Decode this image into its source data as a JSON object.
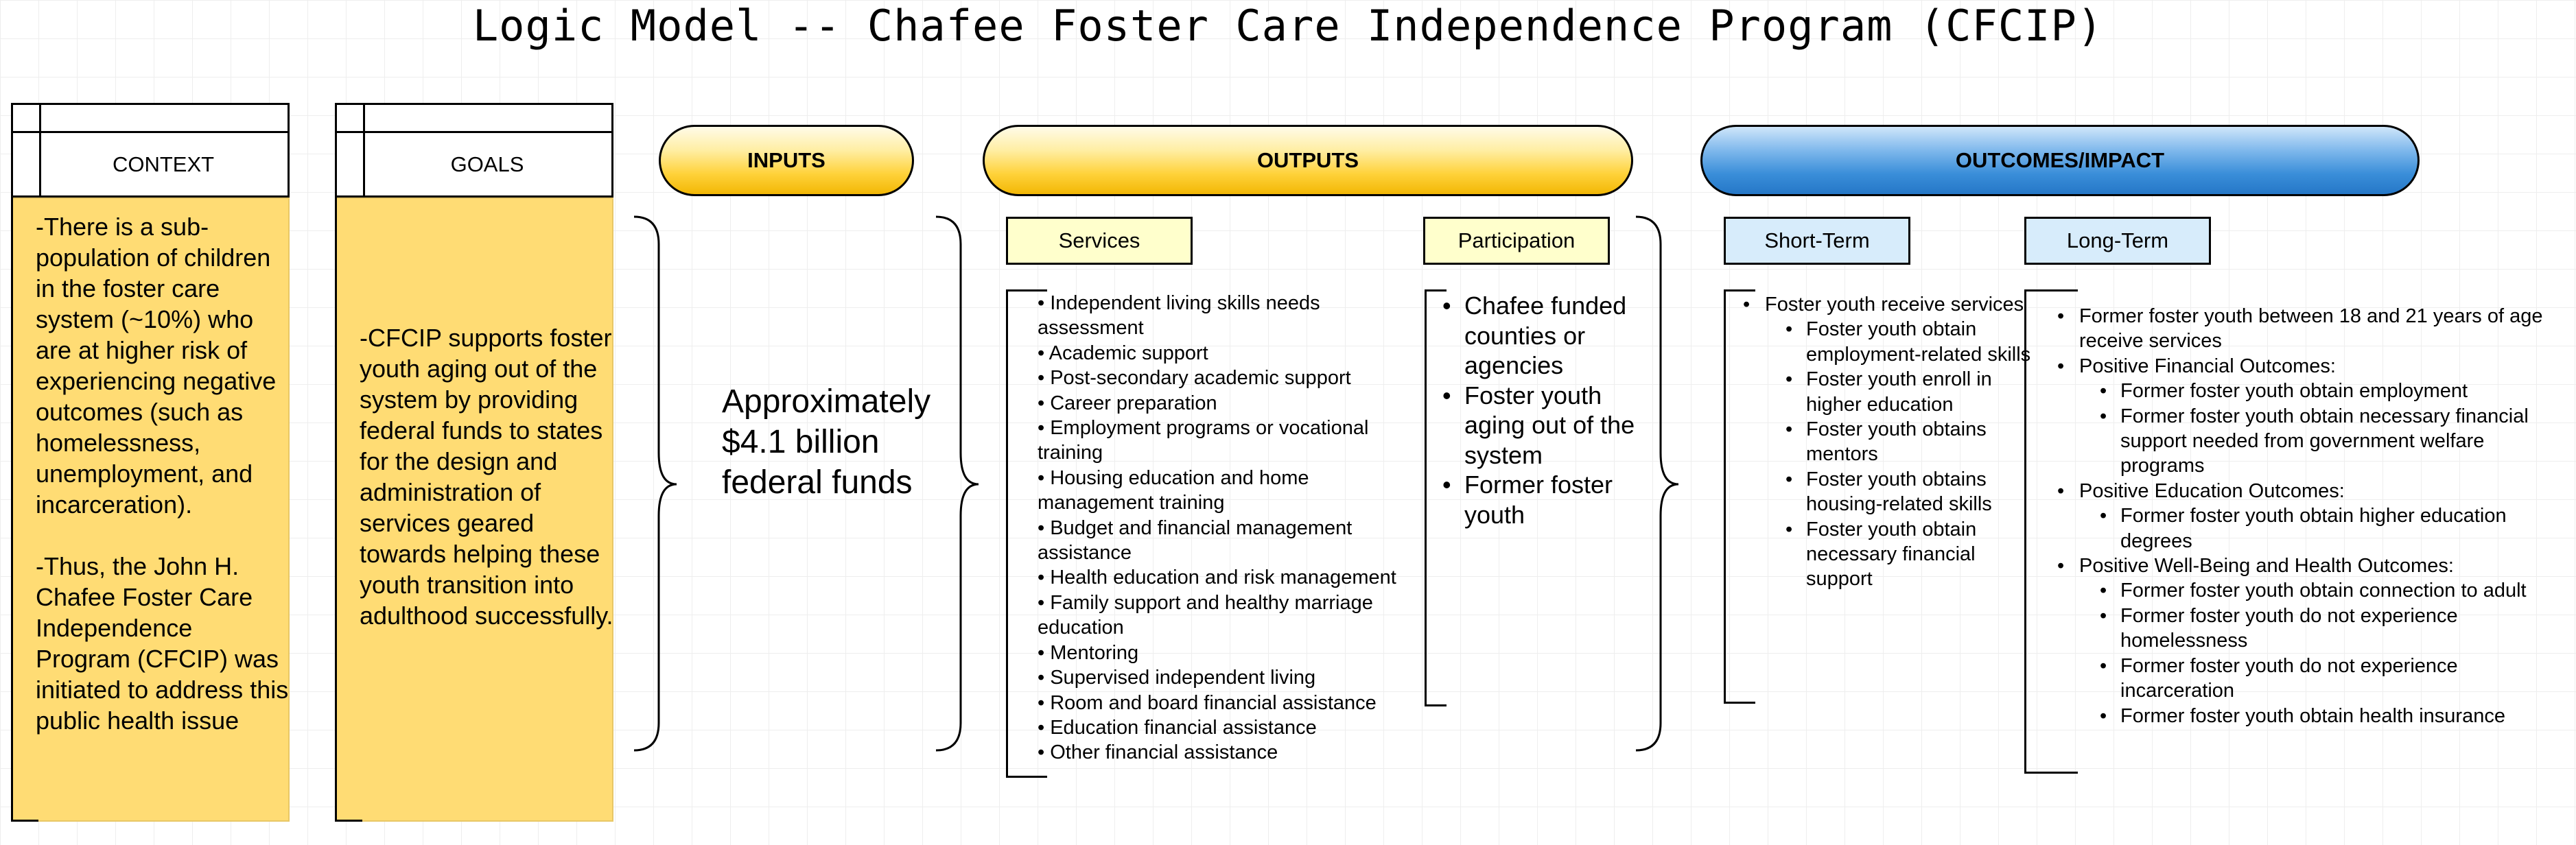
{
  "title": "Logic Model -- Chafee Foster Care Independence Program (CFCIP)",
  "context": {
    "header": "CONTEXT",
    "paragraphs": [
      "-There is a sub-population of children in the foster care system (~10%) who are at higher risk of experiencing negative outcomes (such as homelessness, unemployment, and incarceration).",
      "-Thus, the John H. Chafee Foster Care Independence Program (CFCIP) was initiated to address this public health issue"
    ]
  },
  "goals": {
    "header": "GOALS",
    "text": "-CFCIP supports foster youth aging out of the system by providing federal funds to states for the design and administration of services geared towards helping these youth transition into adulthood successfully."
  },
  "inputs": {
    "label": "INPUTS",
    "text": "Approximately $4.1 billion federal funds"
  },
  "outputs": {
    "label": "OUTPUTS",
    "services_label": "Services",
    "services": [
      "Independent living skills needs assessment",
      "Academic support",
      "Post-secondary academic support",
      "Career preparation",
      "Employment programs or vocational training",
      "Housing education and home management training",
      "Budget and financial management assistance",
      "Health education and risk management",
      "Family support and healthy marriage education",
      "Mentoring",
      "Supervised independent living",
      "Room and board financial assistance",
      "Education financial assistance",
      "Other financial assistance"
    ],
    "participation_label": "Participation",
    "participation": [
      "Chafee funded counties or agencies",
      "Foster youth aging out of the system",
      "Former foster youth"
    ]
  },
  "outcomes": {
    "label": "OUTCOMES/IMPACT",
    "short_label": "Short-Term",
    "short_main": "Foster youth receive services",
    "short_sub": [
      "Foster youth obtain employment-related skills",
      "Foster youth enroll in higher education",
      "Foster youth obtains mentors",
      "Foster youth obtains housing-related skills",
      "Foster youth obtain necessary financial support"
    ],
    "long_label": "Long-Term",
    "long": {
      "item0": "Former foster youth between 18 and 21 years of age receive services",
      "financial": "Positive Financial Outcomes:",
      "financial_sub": [
        "Former foster youth obtain employment",
        "Former foster youth obtain necessary financial support needed from government welfare programs"
      ],
      "education": "Positive Education Outcomes:",
      "education_sub": [
        "Former foster youth obtain higher education degrees"
      ],
      "wellbeing": "Positive Well-Being and Health Outcomes:",
      "wellbeing_sub": [
        "Former foster youth obtain connection to adult",
        "Former foster youth do not experience homelessness",
        "Former foster youth do not experience incarceration",
        "Former foster youth obtain health insurance"
      ]
    }
  },
  "colors": {
    "context_fill": "#ffdc74",
    "gold_pill": "#ffd23a",
    "blue_pill": "#3a8ed9",
    "yellow_tag": "#ffffcc",
    "blue_tag": "#d7ecfb"
  }
}
